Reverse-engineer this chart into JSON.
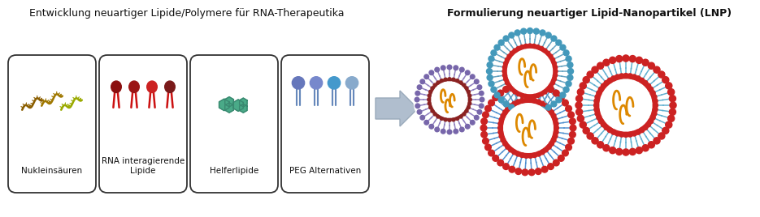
{
  "title_left": "Entwicklung neuartiger Lipide/Polymere für RNA-Therapeutika",
  "title_right": "Formulierung neuartiger Lipid-Nanopartikel (LNP)",
  "labels": [
    "Nukleinsäuren",
    "RNA interagierende\nLipide",
    "Helferlipide",
    "PEG Alternativen"
  ],
  "bg_color": "#ffffff",
  "box_edge_color": "#333333",
  "title_fontsize": 9.0,
  "label_fontsize": 7.5,
  "nucleic_color1": "#8b5e00",
  "nucleic_color2": "#a07800",
  "nucleic_color3": "#9aaa00",
  "lipid_head_colors": [
    "#8b1010",
    "#9b1515",
    "#cc2222",
    "#7a1a1a"
  ],
  "lipid_tail_color": "#cc1111",
  "helper_color": "#4aaa88",
  "helper_outline": "#3a8870",
  "peg_head_colors": [
    "#6677bb",
    "#7788cc",
    "#4499cc",
    "#88aacc"
  ],
  "peg_tail_color": "#6688bb",
  "lnp1_head": "#6655aa",
  "lnp1_tail": "#8877bb",
  "lnp2_head": "#cc2222",
  "lnp2_tail": "#4488cc",
  "lnp3_head": "#cc2222",
  "lnp3_tail": "#55aacc",
  "rna_color": "#dd8800",
  "arrow_color": "#b0bece",
  "arrow_edge": "#9aaabb"
}
